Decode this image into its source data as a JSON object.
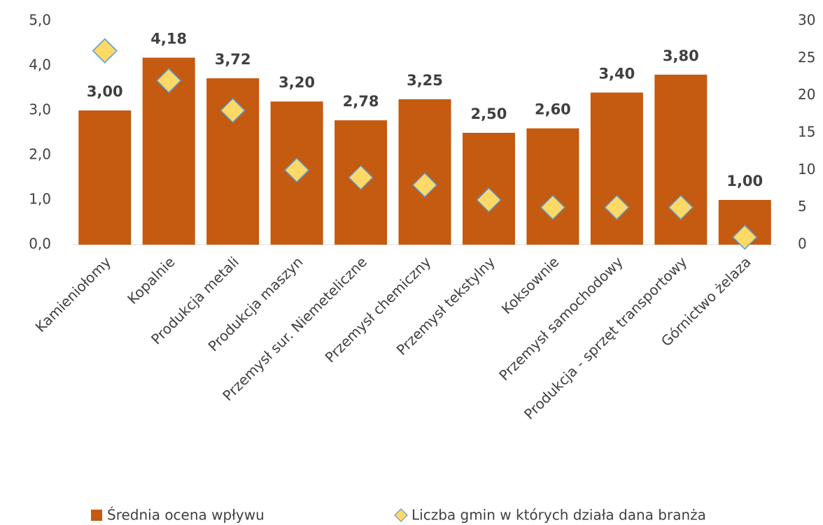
{
  "chart_data": {
    "type": "bar",
    "categories": [
      "Kamieniołomy",
      "Kopalnie",
      "Produkcja metali",
      "Produkcja maszyn",
      "Przemysł sur. Niemeteliczne",
      "Przemysł chemiczny",
      "Przemysł tekstylny",
      "Koksownie",
      "Przemysł samochodowy",
      "Produkcja - sprzęt transportowy",
      "Górnictwo żelaza"
    ],
    "series": [
      {
        "name": "Średnia ocena wpływu",
        "type": "bar",
        "color": "#c55a11",
        "values": [
          3.0,
          4.18,
          3.72,
          3.2,
          2.78,
          3.25,
          2.5,
          2.6,
          3.4,
          3.8,
          1.0
        ],
        "value_labels": [
          "3,00",
          "4,18",
          "3,72",
          "3,20",
          "2,78",
          "3,25",
          "2,50",
          "2,60",
          "3,40",
          "3,80",
          "1,00"
        ]
      },
      {
        "name": "Liczba gmin w których działa dana branża",
        "type": "scatter",
        "axis": "y2",
        "color": "#ffd966",
        "edgecolor": "#5b9bd5",
        "values": [
          26,
          22,
          18,
          10,
          9,
          8,
          6,
          5,
          5,
          5,
          1
        ]
      }
    ],
    "ylim": [
      0,
      5
    ],
    "yticks": [
      {
        "value": 0,
        "label": "0,0"
      },
      {
        "value": 1,
        "label": "1,0"
      },
      {
        "value": 2,
        "label": "2,0"
      },
      {
        "value": 3,
        "label": "3,0"
      },
      {
        "value": 4,
        "label": "4,0"
      },
      {
        "value": 5,
        "label": "5,0"
      }
    ],
    "y2lim": [
      0,
      30
    ],
    "y2ticks": [
      0,
      5,
      10,
      15,
      20,
      25,
      30
    ],
    "grid": false,
    "legend": "bottom"
  }
}
